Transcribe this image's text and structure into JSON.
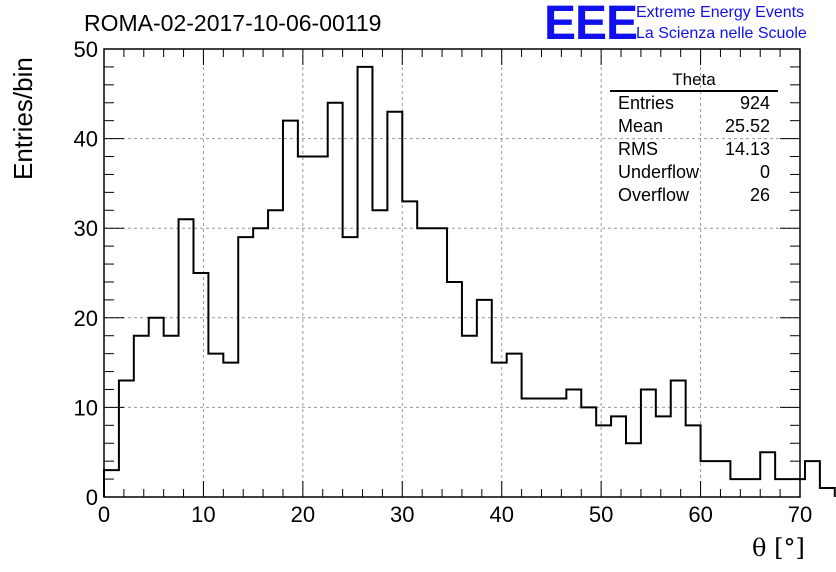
{
  "header": {
    "title": "ROMA-02-2017-10-06-00119",
    "logo_text": "EEE",
    "logo_line1": "Extreme Energy Events",
    "logo_line2": "La Scienza nelle Scuole",
    "logo_color": "#1010ee"
  },
  "stats_box": {
    "title": "Theta",
    "rows": [
      {
        "label": "Entries",
        "value": "924"
      },
      {
        "label": "Mean",
        "value": "25.52"
      },
      {
        "label": "RMS",
        "value": "14.13"
      },
      {
        "label": "Underflow",
        "value": "0"
      },
      {
        "label": "Overflow",
        "value": "26"
      }
    ]
  },
  "chart_data": {
    "type": "histogram",
    "title": "ROMA-02-2017-10-06-00119",
    "xlabel": "θ [°]",
    "ylabel": "Entries/bin",
    "xlim": [
      0,
      70
    ],
    "ylim": [
      0,
      50
    ],
    "xticks": [
      0,
      10,
      20,
      30,
      40,
      50,
      60,
      70
    ],
    "yticks": [
      0,
      10,
      20,
      30,
      40,
      50
    ],
    "grid": true,
    "bin_width": 1.5,
    "bin_edges_start": 0,
    "counts": [
      3,
      13,
      18,
      20,
      18,
      31,
      25,
      16,
      15,
      29,
      30,
      32,
      42,
      38,
      38,
      44,
      29,
      48,
      32,
      43,
      33,
      30,
      30,
      24,
      18,
      22,
      15,
      16,
      11,
      11,
      11,
      12,
      10,
      8,
      9,
      6,
      12,
      9,
      13,
      8,
      4,
      4,
      2,
      2,
      5,
      2,
      2,
      4,
      1
    ],
    "line_color": "#000000"
  }
}
